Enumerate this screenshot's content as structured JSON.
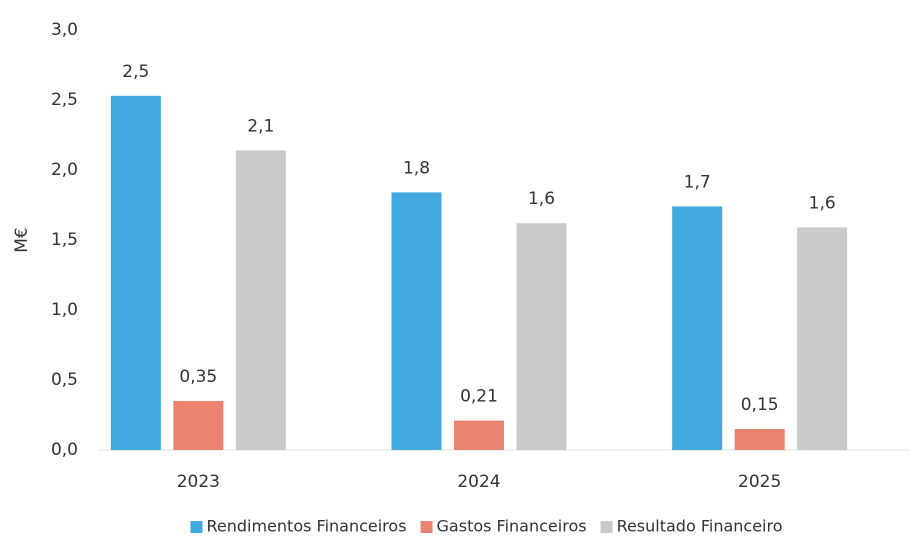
{
  "chart_data": {
    "type": "bar",
    "categories": [
      "2023",
      "2024",
      "2025"
    ],
    "y_label": "M€",
    "series": [
      {
        "name": "Rendimentos Financeiros",
        "color": "#41a9dd",
        "values": [
          2.53,
          1.84,
          1.74
        ],
        "value_labels": [
          "2,5",
          "1,8",
          "1,7"
        ]
      },
      {
        "name": "Gastos Financeiros",
        "color": "#ea8470",
        "values": [
          0.35,
          0.21,
          0.15
        ],
        "value_labels": [
          "0,35",
          "0,21",
          "0,15"
        ]
      },
      {
        "name": "Resultado Financeiro",
        "color": "#c9c9c9",
        "values": [
          2.14,
          1.62,
          1.59
        ],
        "value_labels": [
          "2,1",
          "1,6",
          "1,6"
        ]
      }
    ],
    "ylim": [
      0,
      3
    ],
    "yticks": [
      {
        "value": 0,
        "label": "0,0"
      },
      {
        "value": 0.5,
        "label": "0,5"
      },
      {
        "value": 1,
        "label": "1,0"
      },
      {
        "value": 1.5,
        "label": "1,5"
      },
      {
        "value": 2,
        "label": "2,0"
      },
      {
        "value": 2.5,
        "label": "2,5"
      },
      {
        "value": 3,
        "label": "3,0"
      }
    ],
    "grid": false,
    "legend": "bottom"
  }
}
